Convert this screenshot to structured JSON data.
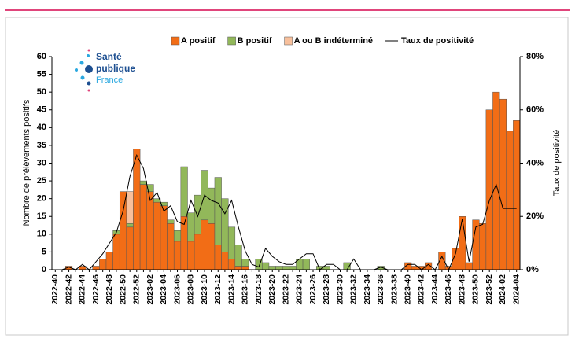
{
  "chart_data": {
    "type": "bar",
    "stacked": true,
    "categories": [
      "2022-40",
      null,
      "2022-42",
      null,
      "2022-44",
      null,
      "2022-46",
      null,
      "2022-48",
      null,
      "2022-50",
      null,
      "2022-52",
      null,
      "2023-02",
      null,
      "2023-04",
      null,
      "2023-06",
      null,
      "2023-08",
      null,
      "2023-10",
      null,
      "2023-12",
      null,
      "2023-14",
      null,
      "2023-16",
      null,
      "2023-18",
      null,
      "2023-20",
      null,
      "2023-22",
      null,
      "2023-24",
      null,
      "2023-26",
      null,
      "2023-28",
      null,
      "2023-30",
      null,
      "2023-32",
      null,
      "2023-34",
      null,
      "2023-36",
      null,
      "2023-38",
      null,
      "2023-40",
      null,
      "2023-42",
      null,
      "2023-44",
      null,
      "2023-46",
      null,
      "2023-48",
      null,
      "2023-50",
      null,
      "2023-52",
      null,
      "2024-02",
      null,
      "2024-04"
    ],
    "series": [
      {
        "name": "A positif",
        "color": "#f26d16",
        "values": [
          0,
          0,
          1,
          0,
          1,
          0,
          1,
          3,
          5,
          10,
          22,
          12,
          34,
          24,
          22,
          19,
          18,
          13,
          8,
          15,
          8,
          10,
          14,
          13,
          7,
          5,
          3,
          1,
          1,
          0,
          0,
          0,
          0,
          0,
          0,
          0,
          0,
          0,
          0,
          0,
          0,
          0,
          0,
          0,
          0,
          0,
          0,
          0,
          0,
          0,
          0,
          0,
          2,
          1,
          1,
          2,
          0,
          5,
          1,
          6,
          15,
          2,
          14,
          13,
          45,
          50,
          48,
          39,
          42
        ]
      },
      {
        "name": "B positif",
        "color": "#92b85a",
        "values": [
          0,
          0,
          0,
          0,
          0,
          0,
          0,
          0,
          0,
          1,
          0,
          1,
          0,
          1,
          2,
          1,
          1,
          1,
          3,
          14,
          8,
          11,
          14,
          10,
          19,
          15,
          9,
          6,
          2,
          0,
          3,
          2,
          1,
          1,
          1,
          1,
          3,
          3,
          0,
          1,
          1,
          0,
          0,
          2,
          0,
          0,
          0,
          0,
          1,
          0,
          0,
          0,
          0,
          0,
          0,
          0,
          0,
          0,
          0,
          0,
          0,
          0,
          0,
          0,
          0,
          0,
          0,
          0,
          0
        ]
      },
      {
        "name": "A ou B indéterminé",
        "color": "#f8c09c",
        "values": [
          0,
          0,
          0,
          0,
          0,
          0,
          0,
          0,
          0,
          0,
          0,
          9,
          0,
          0,
          0,
          0,
          0,
          0,
          0,
          0,
          0,
          0,
          0,
          0,
          0,
          0,
          0,
          0,
          0,
          0,
          0,
          0,
          0,
          0,
          0,
          0,
          0,
          0,
          0,
          0,
          0,
          0,
          0,
          0,
          0,
          0,
          0,
          0,
          0,
          0,
          0,
          0,
          0,
          0,
          0,
          0,
          0,
          0,
          0,
          0,
          0,
          0,
          0,
          0,
          0,
          0,
          0,
          0,
          0
        ]
      },
      {
        "name": "Taux de positivité",
        "color": "#000000",
        "type": "line",
        "axis": "y2",
        "values": [
          0,
          0,
          1,
          0,
          2,
          0,
          3,
          6,
          10,
          14,
          22,
          35,
          43,
          38,
          26,
          29,
          22,
          24,
          18,
          17,
          26,
          20,
          28,
          26,
          25,
          21,
          26,
          16,
          7,
          2,
          1,
          8,
          5,
          3,
          2,
          2,
          4,
          6,
          6,
          0,
          2,
          2,
          0,
          0,
          4,
          0,
          0,
          0,
          1,
          0,
          0,
          0,
          2,
          2,
          0,
          2,
          0,
          5,
          0,
          6,
          19,
          3,
          16,
          17,
          26,
          32,
          23,
          23,
          23
        ]
      }
    ],
    "y_label": "Nombre de prélèvements positifs",
    "y2_label": "Taux de positivité",
    "ylim": [
      0,
      60
    ],
    "yticks": [
      0,
      5,
      10,
      15,
      20,
      25,
      30,
      35,
      40,
      45,
      50,
      55,
      60
    ],
    "y2lim": [
      0,
      80
    ],
    "y2ticks": [
      {
        "value": 0,
        "label": "0%"
      },
      {
        "value": 20,
        "label": "20%"
      },
      {
        "value": 40,
        "label": "40%"
      },
      {
        "value": 60,
        "label": "60%"
      },
      {
        "value": 80,
        "label": "80%"
      }
    ],
    "legend": "top"
  },
  "logo": {
    "lines": [
      "Santé",
      "publique",
      "France"
    ]
  }
}
